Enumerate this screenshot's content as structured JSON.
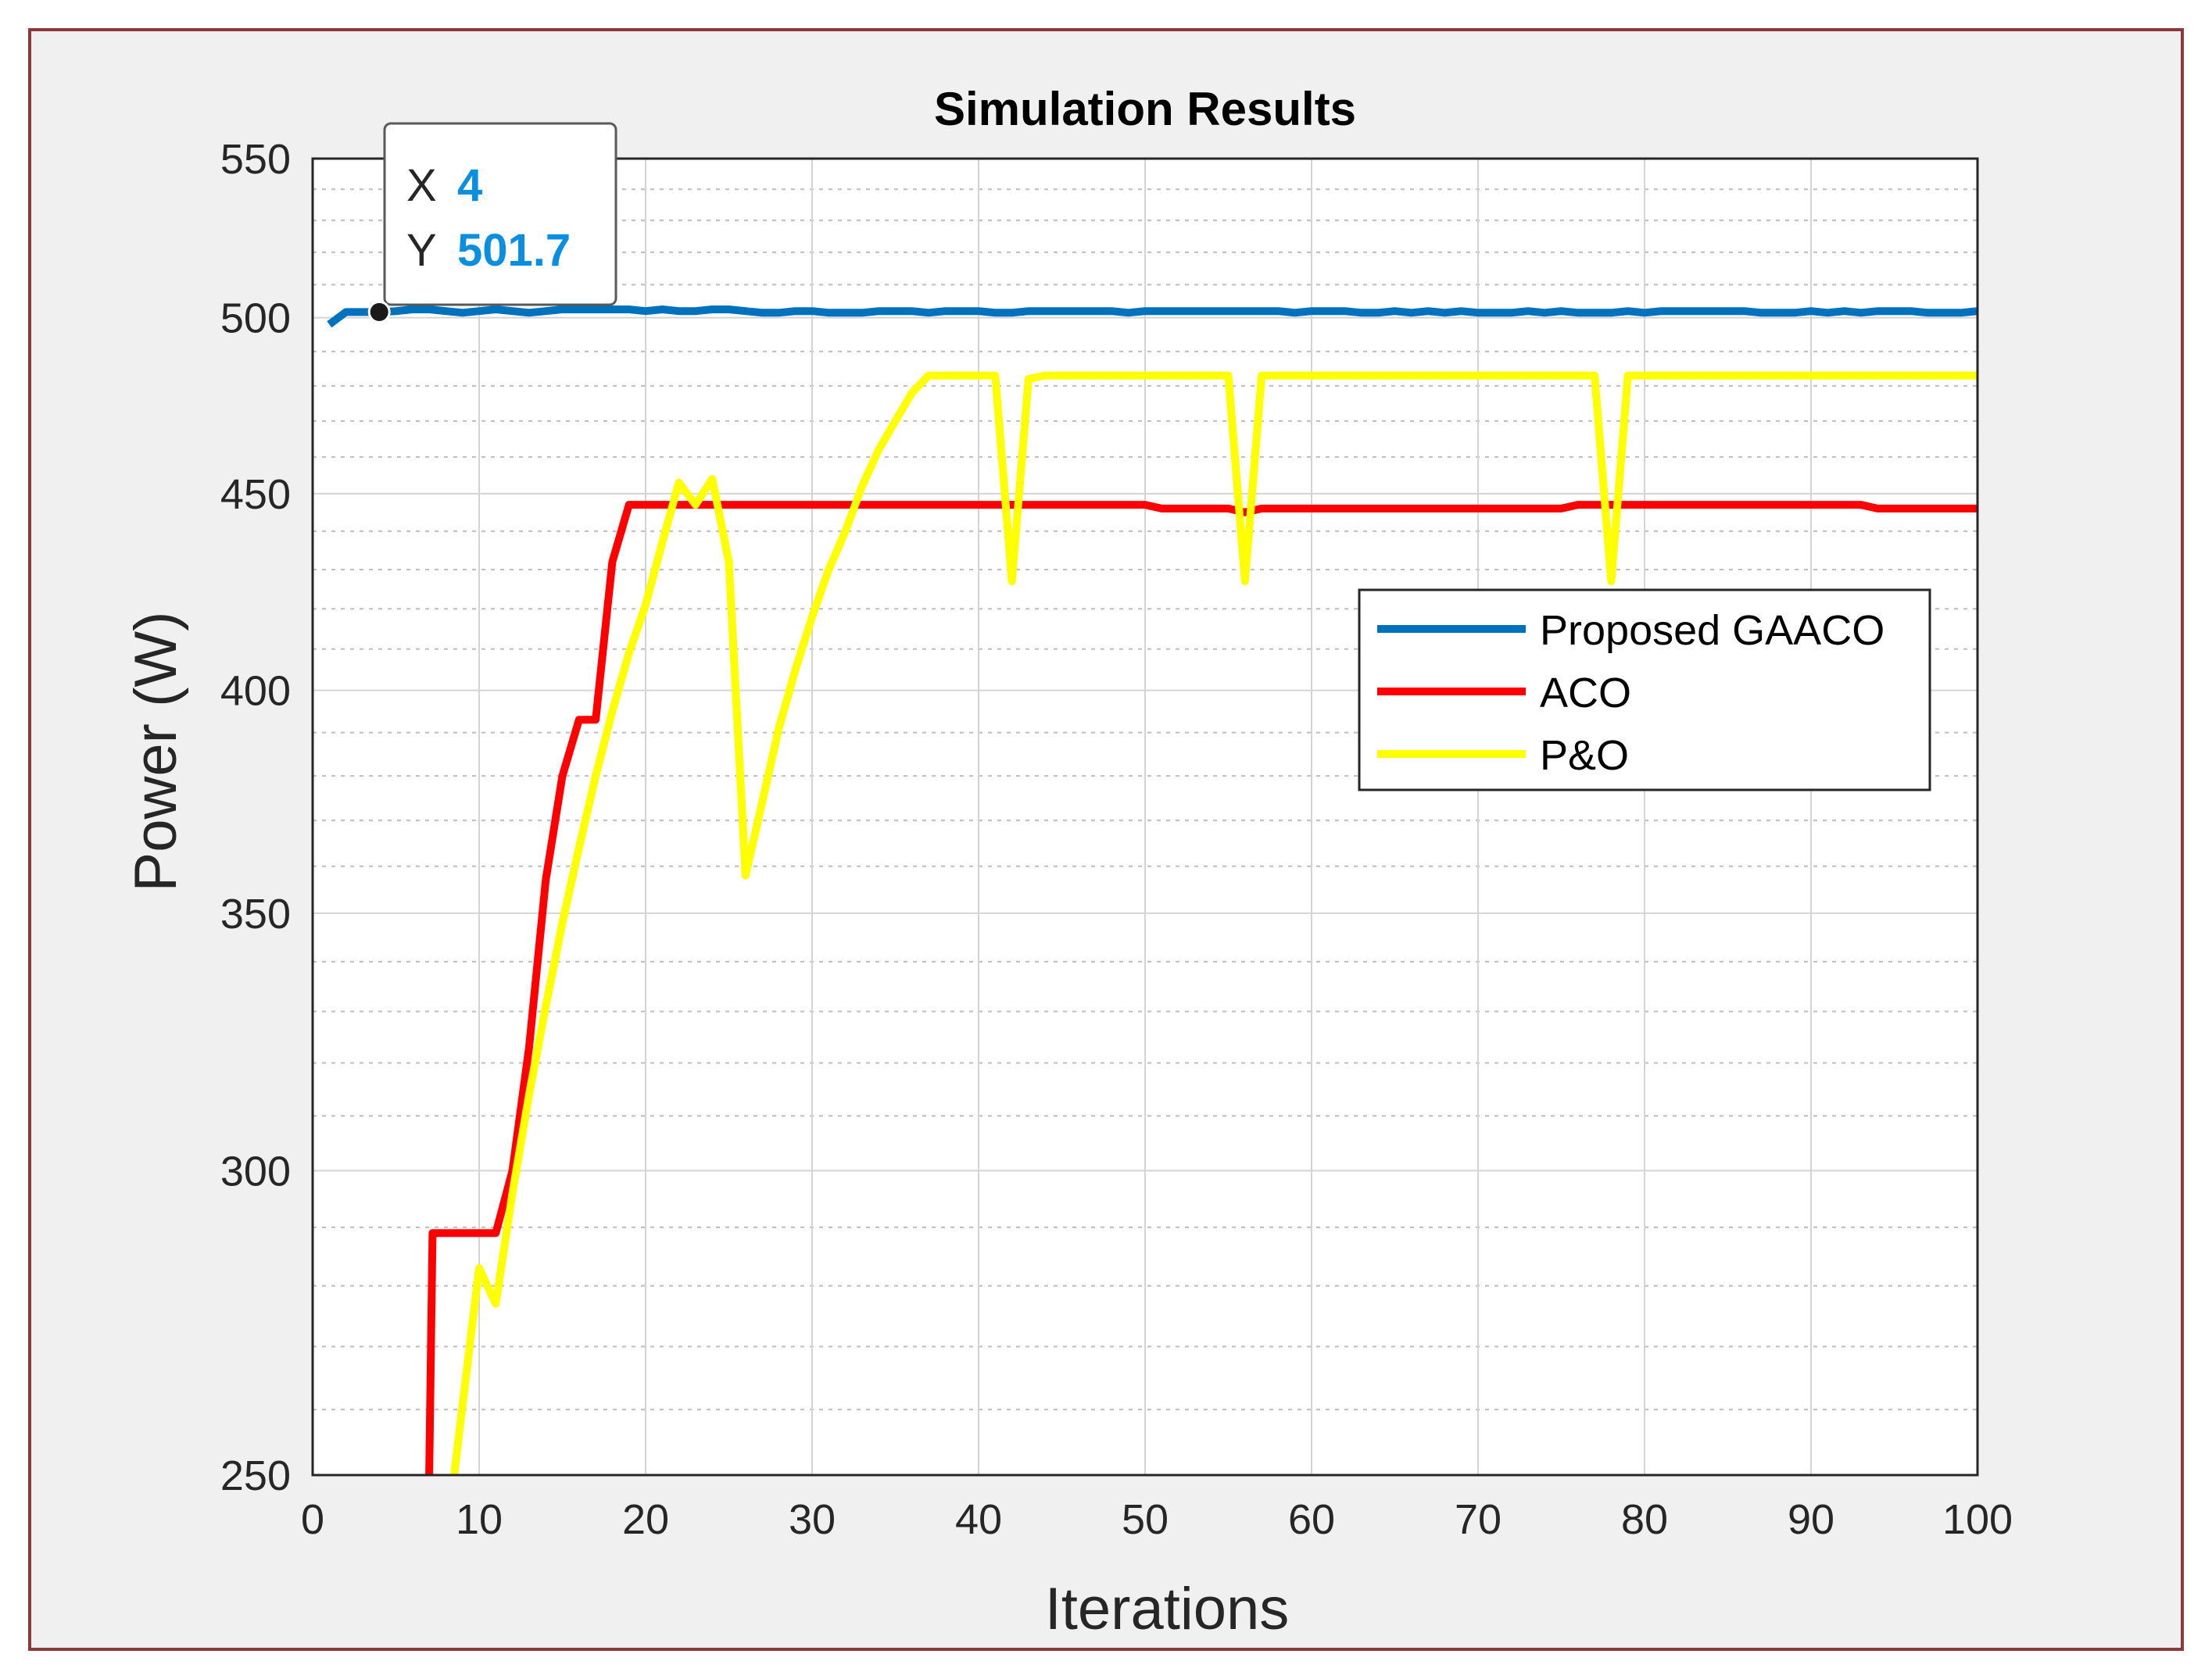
{
  "chart_data": {
    "type": "line",
    "title": "Simulation Results",
    "xlabel": "Iterations",
    "ylabel": "Power (W)",
    "xlim": [
      0,
      100
    ],
    "ylim": [
      250,
      550
    ],
    "y_scale": "log",
    "grid": "major and minor",
    "xticks": [
      "0",
      "10",
      "20",
      "30",
      "40",
      "50",
      "60",
      "70",
      "80",
      "90",
      "100"
    ],
    "yticks": [
      "250",
      "300",
      "350",
      "400",
      "450",
      "500",
      "550"
    ],
    "legend_position": "right-middle",
    "series": [
      {
        "name": "Proposed GAACO",
        "color": "#0072BD",
        "x": [
          1,
          2,
          3,
          4,
          5,
          6,
          7,
          8,
          9,
          10,
          11,
          12,
          13,
          14,
          15,
          16,
          17,
          18,
          19,
          20,
          21,
          22,
          23,
          24,
          25,
          26,
          27,
          28,
          29,
          30,
          31,
          32,
          33,
          34,
          35,
          36,
          37,
          38,
          39,
          40,
          41,
          42,
          43,
          44,
          45,
          46,
          47,
          48,
          49,
          50,
          51,
          52,
          53,
          54,
          55,
          56,
          57,
          58,
          59,
          60,
          61,
          62,
          63,
          64,
          65,
          66,
          67,
          68,
          69,
          70,
          71,
          72,
          73,
          74,
          75,
          76,
          77,
          78,
          79,
          80,
          81,
          82,
          83,
          84,
          85,
          86,
          87,
          88,
          89,
          90,
          91,
          92,
          93,
          94,
          95,
          96,
          97,
          98,
          99,
          100
        ],
        "y": [
          498,
          501.7,
          501.7,
          501.7,
          502,
          502.5,
          502.5,
          502,
          501.5,
          502,
          502.5,
          502,
          501.5,
          502,
          502.5,
          502.5,
          502.5,
          502.5,
          502.5,
          502,
          502.5,
          502,
          502,
          502.5,
          502.5,
          502,
          501.5,
          501.5,
          502,
          502,
          501.5,
          501.5,
          501.5,
          502,
          502,
          502,
          501.5,
          502,
          502,
          502,
          501.5,
          501.5,
          502,
          502,
          502,
          502,
          502,
          502,
          501.5,
          502,
          502,
          502,
          502,
          502,
          502,
          502,
          502,
          502,
          501.5,
          502,
          502,
          502,
          501.5,
          501.5,
          502,
          501.5,
          502,
          501.5,
          502,
          501.5,
          501.5,
          501.5,
          502,
          501.5,
          502,
          501.5,
          501.5,
          501.5,
          502,
          501.5,
          502,
          502,
          502,
          502,
          502,
          502,
          501.5,
          501.5,
          501.5,
          502,
          501.5,
          502,
          501.5,
          502,
          502,
          502,
          501.5,
          501.5,
          501.5,
          502
        ]
      },
      {
        "name": "ACO",
        "color": "#FF0000",
        "x": [
          7,
          7.2,
          11,
          12,
          13,
          14,
          15,
          16,
          17,
          18,
          19,
          20,
          25,
          30,
          35,
          40,
          45,
          50,
          51,
          52,
          55,
          56,
          57,
          60,
          65,
          70,
          75,
          76,
          80,
          85,
          90,
          93,
          94,
          100
        ],
        "y": [
          250,
          289,
          289,
          300,
          323,
          357,
          380,
          393,
          393,
          432,
          447,
          447,
          447,
          447,
          447,
          447,
          447,
          447,
          446,
          446,
          446,
          445,
          446,
          446,
          446,
          446,
          446,
          447,
          447,
          447,
          447,
          447,
          446,
          446
        ]
      },
      {
        "name": "P&O",
        "color": "#FFFF00",
        "x": [
          8.5,
          10,
          11,
          12,
          13,
          14,
          15,
          16,
          17,
          18,
          19,
          20,
          21,
          22,
          23,
          24,
          25,
          26,
          27,
          28,
          29,
          30,
          31,
          32,
          33,
          34,
          35,
          36,
          37,
          38,
          39,
          40,
          41,
          42,
          43,
          44,
          45,
          50,
          55,
          56,
          57,
          60,
          65,
          70,
          75,
          76,
          77,
          78,
          79,
          80,
          85,
          90,
          95,
          100
        ],
        "y": [
          250,
          283,
          277,
          296,
          314,
          331,
          348,
          364,
          380,
          395,
          409,
          421,
          437,
          453,
          447,
          454,
          432,
          358,
          374,
          391,
          405,
          418,
          430,
          440,
          452,
          462,
          470,
          478,
          483,
          483,
          483,
          483,
          483,
          427,
          482,
          483,
          483,
          483,
          483,
          427,
          483,
          483,
          483,
          483,
          483,
          483,
          483,
          427,
          483,
          483,
          483,
          483,
          483,
          483
        ]
      }
    ],
    "datatip": {
      "x_key": "X",
      "x_value": "4",
      "y_key": "Y",
      "y_value": "501.7",
      "point_x": 4,
      "point_y": 501.7
    }
  }
}
